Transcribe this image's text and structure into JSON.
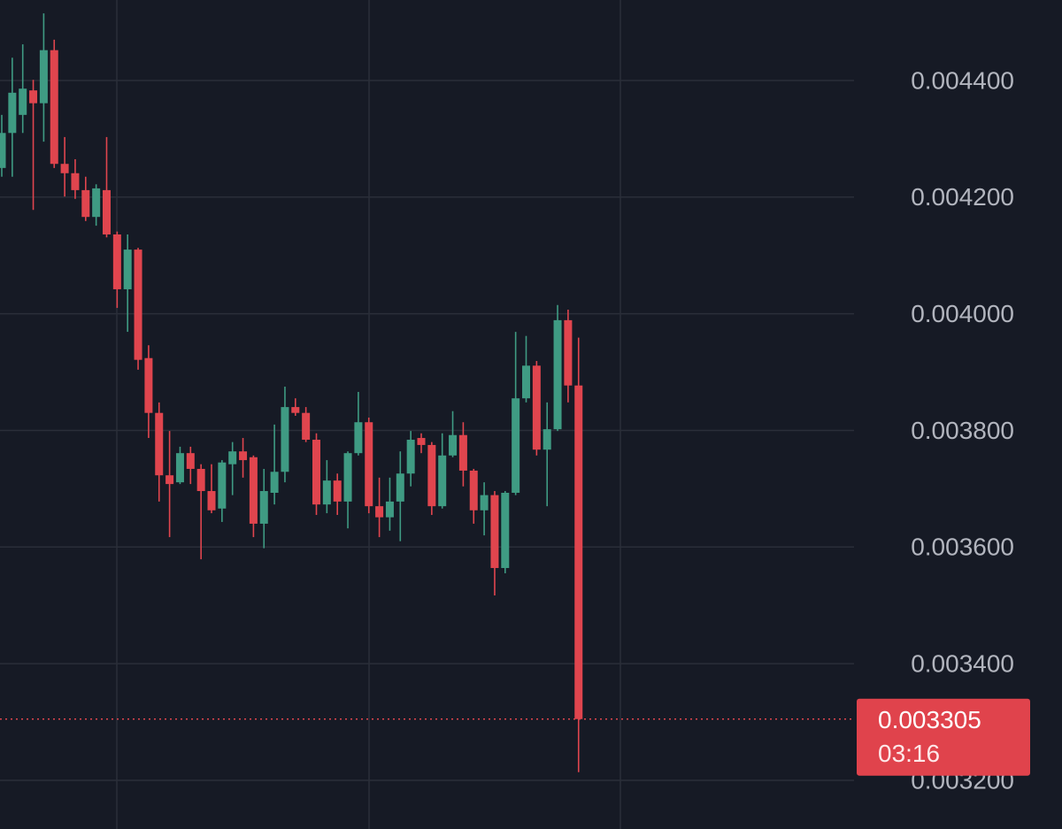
{
  "chart_data": {
    "type": "candlestick",
    "open": [
      0.00425,
      0.00431,
      0.004341,
      0.004383,
      0.004361,
      0.004452,
      0.004257,
      0.004241,
      0.004212,
      0.004166,
      0.004212,
      0.004136,
      0.004042,
      0.00411,
      0.003924,
      0.00383,
      0.003723,
      0.003711,
      0.003761,
      0.003734,
      0.003696,
      0.003666,
      0.003742,
      0.003764,
      0.003754,
      0.00364,
      0.003693,
      0.003729,
      0.00384,
      0.00383,
      0.003784,
      0.003673,
      0.003714,
      0.003678,
      0.003761,
      0.003814,
      0.00367,
      0.003651,
      0.003678,
      0.003726,
      0.003787,
      0.003775,
      0.00367,
      0.003757,
      0.003792,
      0.003731,
      0.003663,
      0.003689,
      0.003564,
      0.003693,
      0.003855,
      0.003911,
      0.003767,
      0.003802,
      0.003989,
      0.003877
    ],
    "high": [
      0.004341,
      0.004439,
      0.004462,
      0.004401,
      0.004515,
      0.00447,
      0.004303,
      0.004265,
      0.004235,
      0.004222,
      0.004303,
      0.004141,
      0.004136,
      0.004113,
      0.003946,
      0.003848,
      0.003799,
      0.003772,
      0.003772,
      0.003742,
      0.003742,
      0.003749,
      0.00378,
      0.003787,
      0.003757,
      0.003734,
      0.00381,
      0.003875,
      0.003855,
      0.00384,
      0.003795,
      0.003749,
      0.003726,
      0.003764,
      0.003866,
      0.003822,
      0.003719,
      0.003719,
      0.003764,
      0.003799,
      0.003795,
      0.00378,
      0.003795,
      0.003833,
      0.003814,
      0.003734,
      0.003711,
      0.003696,
      0.003696,
      0.003969,
      0.003962,
      0.003919,
      0.003848,
      0.004015,
      0.004007,
      0.003959
    ],
    "low": [
      0.004235,
      0.004235,
      0.00431,
      0.004178,
      0.004295,
      0.00425,
      0.004201,
      0.004197,
      0.004159,
      0.004151,
      0.004131,
      0.00401,
      0.003969,
      0.003904,
      0.003787,
      0.003678,
      0.003617,
      0.003708,
      0.003708,
      0.003579,
      0.003658,
      0.003643,
      0.003689,
      0.003719,
      0.003617,
      0.003598,
      0.003673,
      0.003711,
      0.003825,
      0.00378,
      0.003655,
      0.003658,
      0.003655,
      0.003632,
      0.003757,
      0.003658,
      0.003617,
      0.003628,
      0.00361,
      0.003704,
      0.003761,
      0.003655,
      0.003666,
      0.003754,
      0.003704,
      0.00364,
      0.00362,
      0.003517,
      0.003555,
      0.003689,
      0.003848,
      0.003757,
      0.00367,
      0.003799,
      0.003848,
      0.003214
    ],
    "close": [
      0.00431,
      0.004379,
      0.004386,
      0.004361,
      0.004452,
      0.004257,
      0.004241,
      0.004212,
      0.004166,
      0.004215,
      0.004136,
      0.004042,
      0.00411,
      0.003921,
      0.00383,
      0.003723,
      0.003708,
      0.003761,
      0.003734,
      0.003696,
      0.003663,
      0.003745,
      0.003764,
      0.003749,
      0.00364,
      0.003696,
      0.003729,
      0.00384,
      0.00383,
      0.003784,
      0.003673,
      0.003714,
      0.003678,
      0.003761,
      0.003814,
      0.00367,
      0.003651,
      0.003678,
      0.003726,
      0.003784,
      0.003775,
      0.00367,
      0.003757,
      0.003792,
      0.003731,
      0.003663,
      0.003689,
      0.003564,
      0.003693,
      0.003855,
      0.003911,
      0.003767,
      0.003802,
      0.003989,
      0.003877,
      0.003305
    ],
    "up_color": "#3f9b83",
    "down_color": "#e0454e",
    "ylim": [
      0.0031165,
      0.004538
    ],
    "yticks": [
      {
        "value": 0.0044,
        "label": "0.004400"
      },
      {
        "value": 0.0042,
        "label": "0.004200"
      },
      {
        "value": 0.004,
        "label": "0.004000"
      },
      {
        "value": 0.0038,
        "label": "0.003800"
      },
      {
        "value": 0.0036,
        "label": "0.003600"
      },
      {
        "value": 0.0034,
        "label": "0.003400"
      },
      {
        "value": 0.0032,
        "label": "0.003200"
      }
    ],
    "grid": true,
    "last_price": {
      "value": 0.003305,
      "label": "0.003305"
    },
    "countdown": "03:16"
  }
}
